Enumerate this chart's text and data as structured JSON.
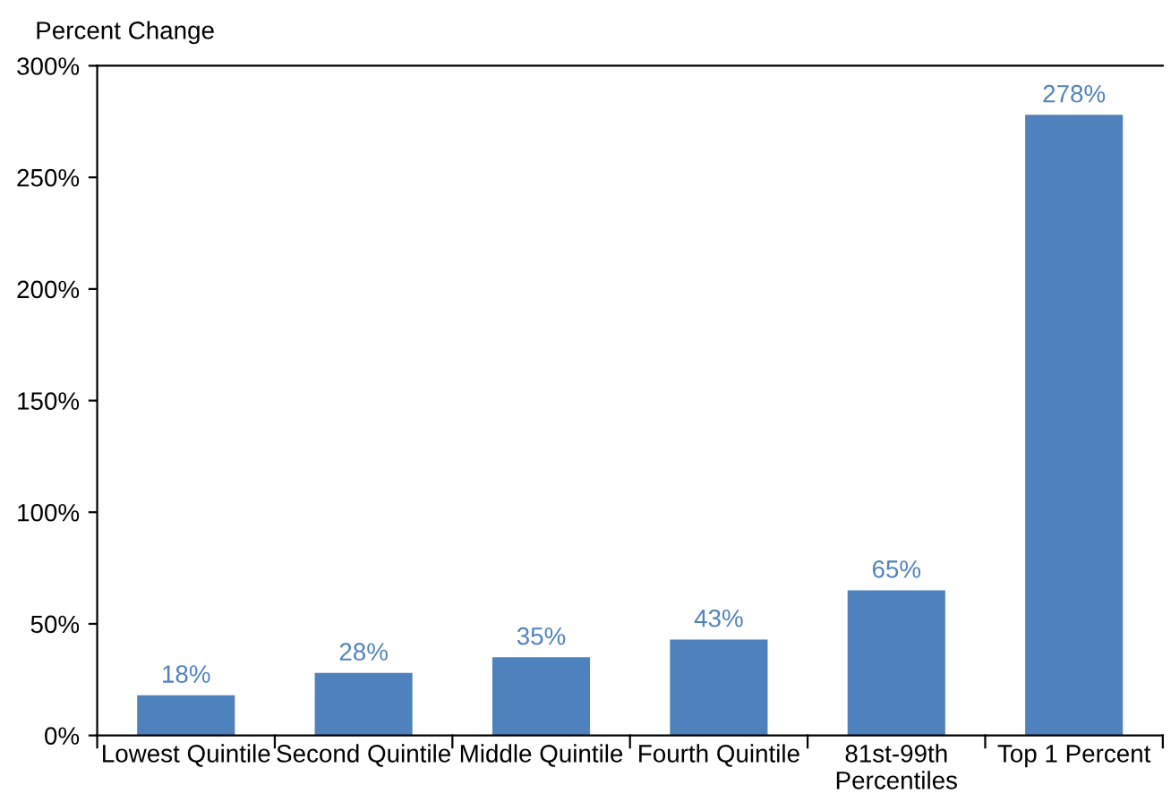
{
  "chart_data": {
    "type": "bar",
    "ylabel": "Percent Change",
    "categories": [
      "Lowest Quintile",
      "Second Quintile",
      "Middle Quintile",
      "Fourth Quintile",
      "81st-99th\nPercentiles",
      "Top 1 Percent"
    ],
    "values": [
      18,
      28,
      35,
      43,
      65,
      278
    ],
    "value_labels": [
      "18%",
      "28%",
      "35%",
      "43%",
      "65%",
      "278%"
    ],
    "color": "#4f81bd",
    "ylim": [
      0,
      300
    ],
    "yticks": [
      {
        "value": 0,
        "label": "0%"
      },
      {
        "value": 50,
        "label": "50%"
      },
      {
        "value": 100,
        "label": "100%"
      },
      {
        "value": 150,
        "label": "150%"
      },
      {
        "value": 200,
        "label": "200%"
      },
      {
        "value": 250,
        "label": "250%"
      },
      {
        "value": 300,
        "label": "300%"
      }
    ],
    "grid": false
  }
}
